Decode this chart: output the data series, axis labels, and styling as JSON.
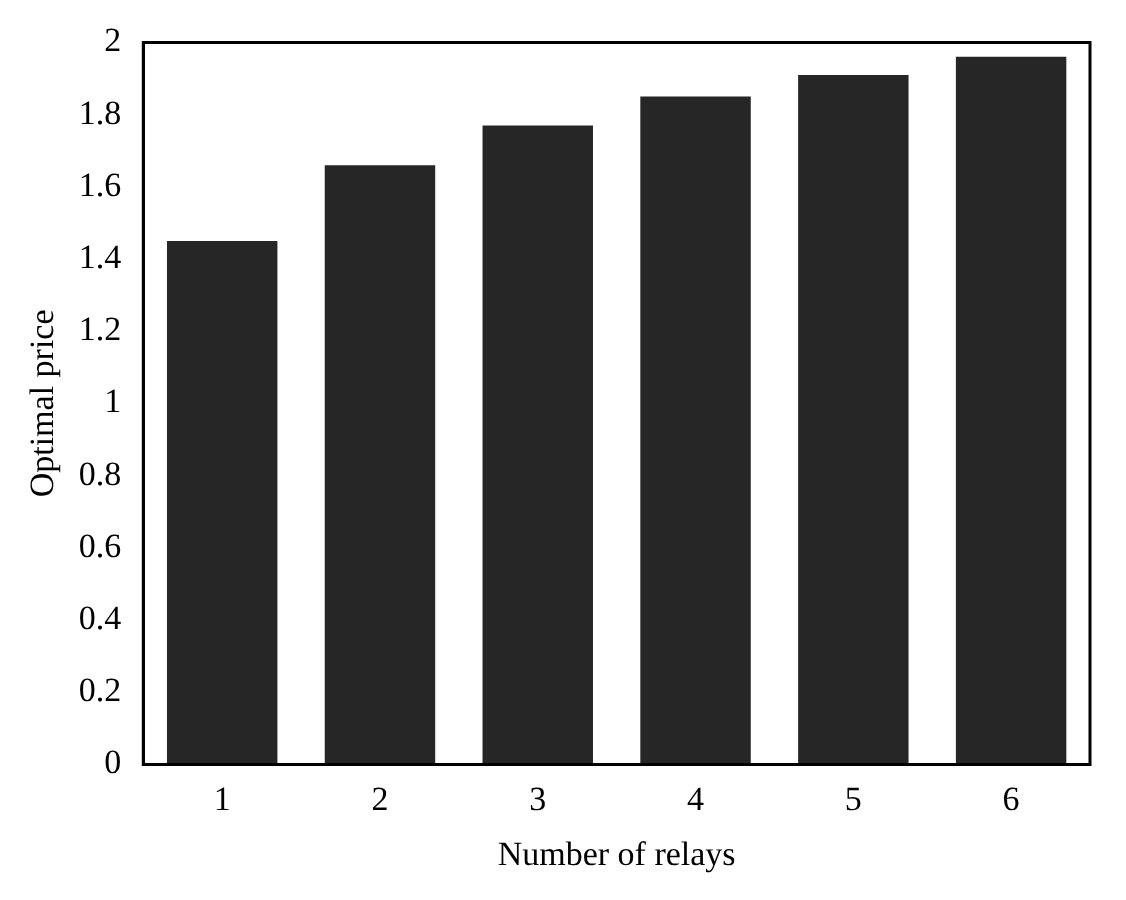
{
  "chart_data": {
    "type": "bar",
    "xlabel": "Number of relays",
    "ylabel": "Optimal price",
    "categories": [
      "1",
      "2",
      "3",
      "4",
      "5",
      "6"
    ],
    "values": [
      1.45,
      1.66,
      1.77,
      1.85,
      1.91,
      1.96
    ],
    "color": "#262626",
    "ylim": [
      0,
      2
    ],
    "yticks": [
      0,
      0.2,
      0.4,
      0.6,
      0.8,
      1,
      1.2,
      1.4,
      1.6,
      1.8,
      2
    ],
    "grid": false
  }
}
